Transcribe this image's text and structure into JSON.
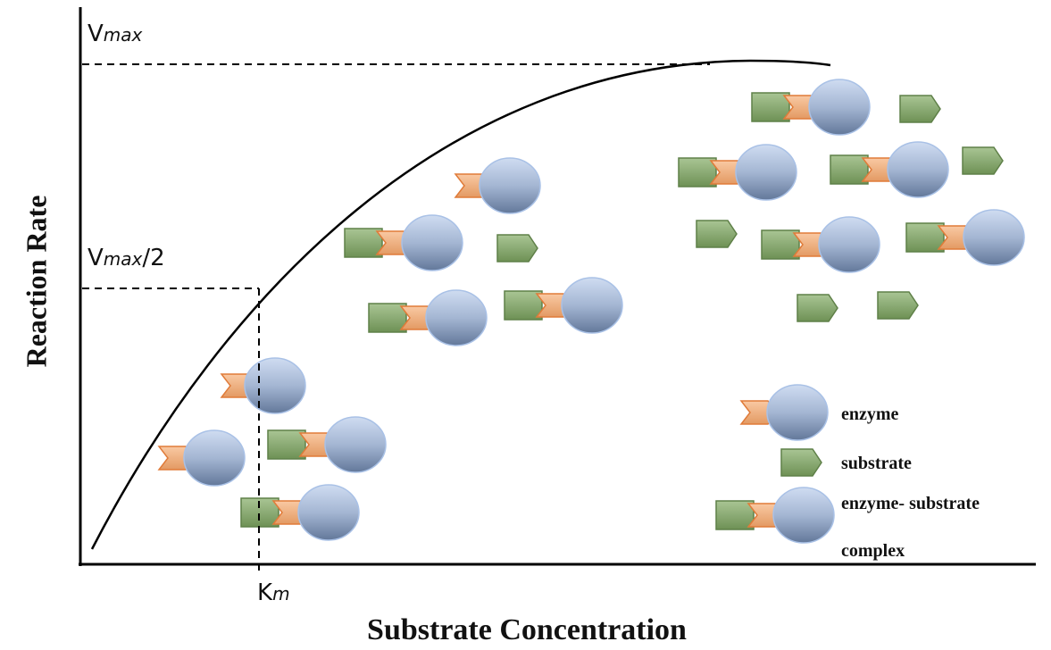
{
  "axes": {
    "y_label": "Reaction Rate",
    "x_label": "Substrate Concentration"
  },
  "annotations": {
    "vmax": {
      "base": "V",
      "sub": "max"
    },
    "half_vmax": {
      "base": "V",
      "sub": "max",
      "suffix": "/2"
    },
    "km": {
      "base": "K",
      "sub": "m"
    }
  },
  "legend": {
    "enzyme": "enzyme",
    "substrate": "substrate",
    "complex": [
      "enzyme- substrate",
      "complex"
    ]
  }
}
